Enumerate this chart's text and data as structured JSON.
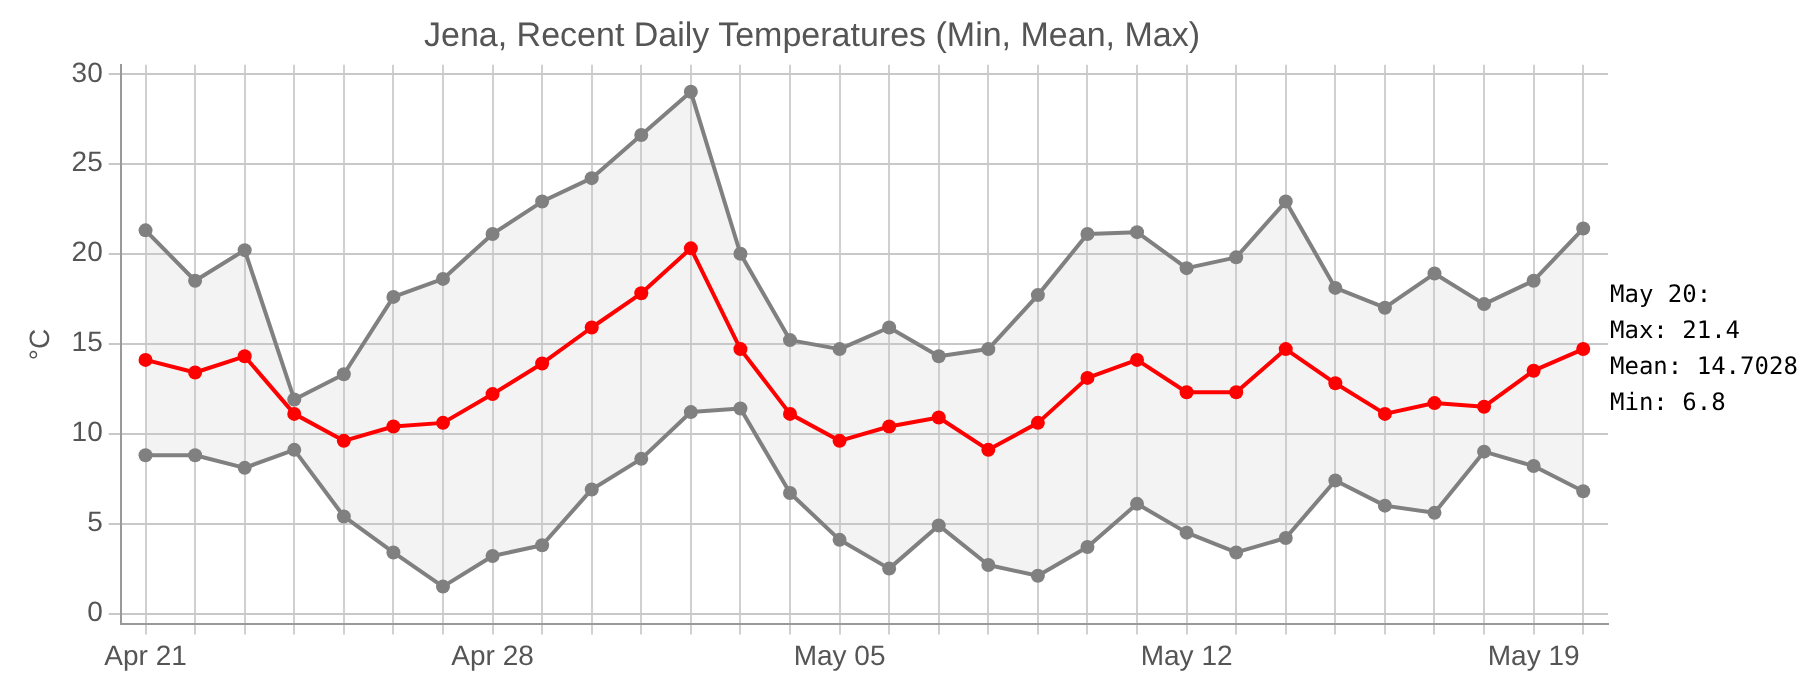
{
  "chart_data": {
    "type": "line",
    "title": "Jena, Recent Daily Temperatures (Min, Mean, Max)",
    "ylabel": "°C",
    "categories": [
      "Apr 21",
      null,
      null,
      null,
      null,
      null,
      null,
      "Apr 28",
      null,
      null,
      null,
      null,
      null,
      null,
      "May 05",
      null,
      null,
      null,
      null,
      null,
      null,
      "May 12",
      null,
      null,
      null,
      null,
      null,
      null,
      "May 19",
      null
    ],
    "series": [
      {
        "color": "#808080",
        "values": [
          21.3,
          18.5,
          20.2,
          11.9,
          13.3,
          17.6,
          18.6,
          21.1,
          22.9,
          24.2,
          26.6,
          29.0,
          20.0,
          15.2,
          14.7,
          15.9,
          14.3,
          14.7,
          17.7,
          21.1,
          21.2,
          19.2,
          19.8,
          22.9,
          18.1,
          17.0,
          18.9,
          17.2,
          18.5,
          21.4
        ]
      },
      {
        "color": "#ff0000",
        "values": [
          14.1,
          13.4,
          14.3,
          11.1,
          9.6,
          10.4,
          10.6,
          12.2,
          13.9,
          15.9,
          17.8,
          20.3,
          14.7,
          11.1,
          9.6,
          10.4,
          10.9,
          9.1,
          10.6,
          13.1,
          14.1,
          12.3,
          12.3,
          14.7,
          12.8,
          11.1,
          11.7,
          11.5,
          13.5,
          14.7028
        ],
        "lower": [
          8.8,
          8.8,
          8.1,
          9.1,
          5.4,
          3.4,
          1.5,
          3.2,
          3.8,
          6.9,
          8.6,
          11.2,
          11.4,
          6.7,
          4.1,
          2.5,
          4.9,
          2.7,
          2.1,
          3.7,
          6.1,
          4.5,
          3.4,
          4.2,
          7.4,
          6.0,
          5.6,
          9.0,
          8.2,
          6.8
        ],
        "upper": [
          21.3,
          18.5,
          20.2,
          11.9,
          13.3,
          17.6,
          18.6,
          21.1,
          22.9,
          24.2,
          26.6,
          29.0,
          20.0,
          15.2,
          14.7,
          15.9,
          14.3,
          14.7,
          17.7,
          21.1,
          21.2,
          19.2,
          19.8,
          22.9,
          18.1,
          17.0,
          18.9,
          17.2,
          18.5,
          21.4
        ]
      },
      {
        "color": "#808080",
        "values": [
          8.8,
          8.8,
          8.1,
          9.1,
          5.4,
          3.4,
          1.5,
          3.2,
          3.8,
          6.9,
          8.6,
          11.2,
          11.4,
          6.7,
          4.1,
          2.5,
          4.9,
          2.7,
          2.1,
          3.7,
          6.1,
          4.5,
          3.4,
          4.2,
          7.4,
          6.0,
          5.6,
          9.0,
          8.2,
          6.8
        ]
      }
    ],
    "ylim": [
      -0.6,
      30.5
    ],
    "yticks": [
      0,
      5,
      10,
      15,
      20,
      25,
      30
    ],
    "grid": true,
    "legend": false,
    "marker": "circle",
    "line_style": "solid",
    "annotations": [
      "May 20:",
      "Max: 21.4",
      "Mean: 14.7028",
      "Min: 6.8"
    ]
  }
}
